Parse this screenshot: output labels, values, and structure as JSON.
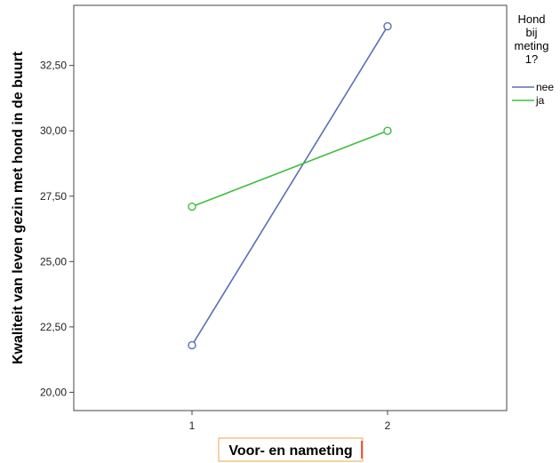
{
  "chart_data": {
    "type": "line",
    "x": [
      1,
      2
    ],
    "x_tick_labels": [
      "1",
      "2"
    ],
    "xlabel": "Voor- en nameting",
    "ylabel": "Kwaliteit van leven gezin met hond in de buurt",
    "ylim": [
      19.3,
      34.8
    ],
    "y_ticks": [
      20,
      22.5,
      25,
      27.5,
      30,
      32.5
    ],
    "y_tick_labels": [
      "20,00",
      "22,50",
      "25,00",
      "27,50",
      "30,00",
      "32,50"
    ],
    "grid": false,
    "legend": {
      "title_lines": [
        "Hond",
        "bij",
        "meting",
        "1?"
      ],
      "placement": "right"
    },
    "series": [
      {
        "name": "nee",
        "values": [
          21.8,
          34.0
        ],
        "color": "#5b6fb3"
      },
      {
        "name": "ja",
        "values": [
          27.1,
          30.0
        ],
        "color": "#3fbf3f"
      }
    ],
    "marker": "circle-open"
  }
}
